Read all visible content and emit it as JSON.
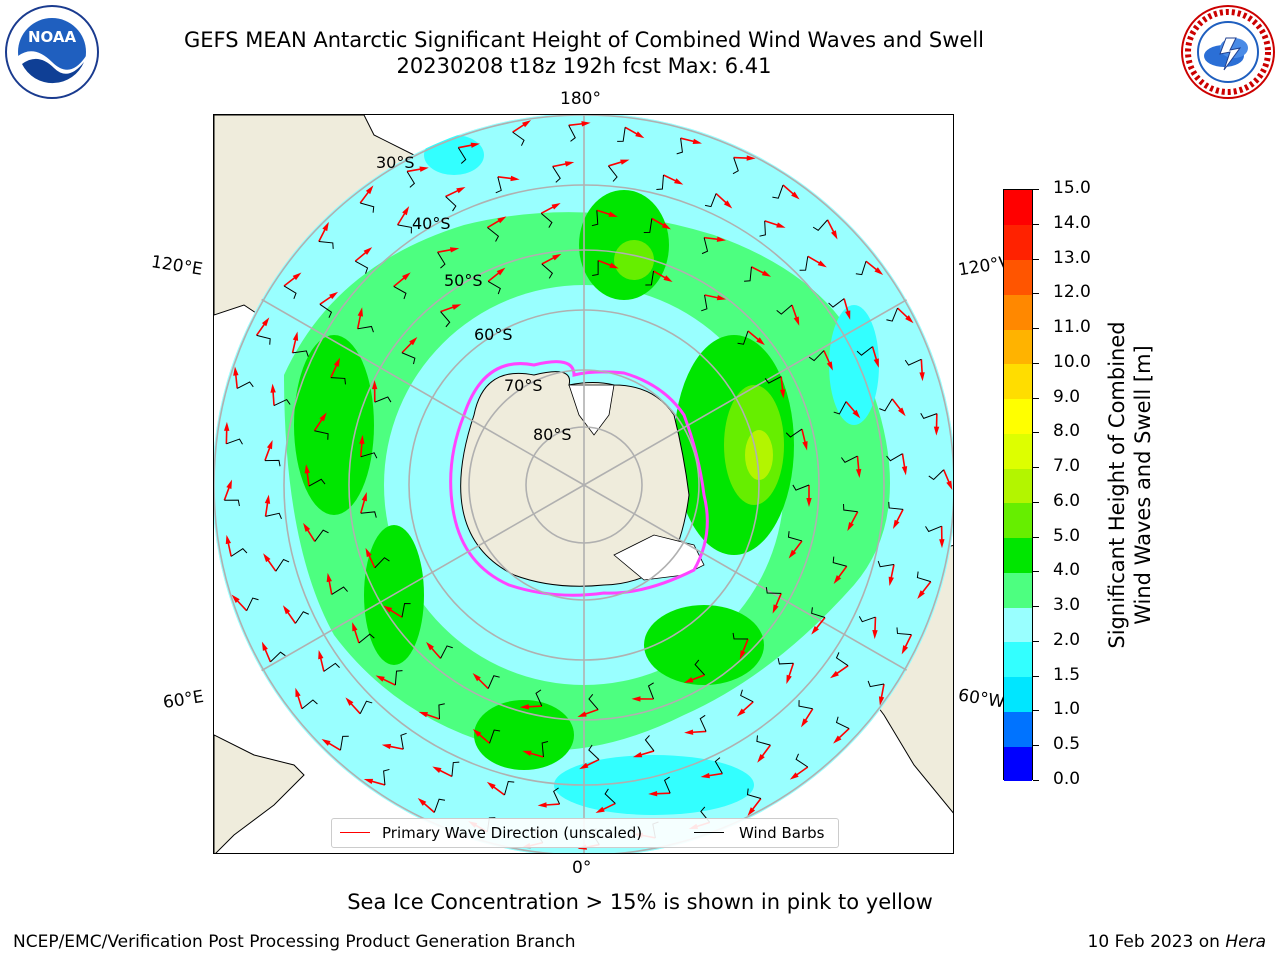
{
  "header": {
    "title_line1": "GEFS MEAN Antarctic Significant Height of Combined Wind Waves and Swell",
    "title_line2": "20230208 t18z 192h fcst   Max: 6.41",
    "left_logo_text": "NOAA",
    "left_logo_ring_text": "NATIONAL OCEANIC AND ATMOSPHERIC ADMINISTRATION · U.S. DEPARTMENT OF COMMERCE",
    "right_logo_ring_text": "NATIONAL WEATHER SERVICE"
  },
  "map": {
    "projection": "south-polar-stereographic",
    "lon_labels": {
      "top": "180°",
      "bottom": "0°",
      "left_upper": "120°E",
      "left_lower": "60°E",
      "right_upper": "120°W",
      "right_lower": "60°W"
    },
    "lat_labels": [
      "30°S",
      "40°S",
      "50°S",
      "60°S",
      "70°S",
      "80°S"
    ],
    "colors": {
      "land": "#efecdc",
      "ice_edge": "#ff44ff",
      "wave_arrow": "#ff0000",
      "wind_barb": "#000000",
      "gridline": "#b0b0b0"
    }
  },
  "legend": {
    "wave_label": "Primary Wave Direction (unscaled)",
    "wind_label": "Wind Barbs"
  },
  "colorbar": {
    "label_line1": "Significant Height of Combined",
    "label_line2": "Wind Waves and Swell [m]",
    "ticks": [
      "0.0",
      "0.5",
      "1.0",
      "1.5",
      "2.0",
      "3.0",
      "4.0",
      "5.0",
      "6.0",
      "7.0",
      "8.0",
      "9.0",
      "10.0",
      "11.0",
      "12.0",
      "13.0",
      "14.0",
      "15.0"
    ],
    "colors": [
      "#0000ff",
      "#0073ff",
      "#00e6ff",
      "#33ffff",
      "#99ffff",
      "#4dff80",
      "#00e600",
      "#66ee00",
      "#b3f500",
      "#ddff00",
      "#ffff00",
      "#ffdd00",
      "#ffb300",
      "#ff8800",
      "#ff5500",
      "#ff2200",
      "#ff0000"
    ]
  },
  "footnote": "Sea Ice Concentration > 15% is shown in pink to yellow",
  "footer": {
    "left": "NCEP/EMC/Verification Post Processing Product Generation Branch",
    "right_prefix": "10 Feb 2023 on ",
    "right_host": "Hera"
  }
}
